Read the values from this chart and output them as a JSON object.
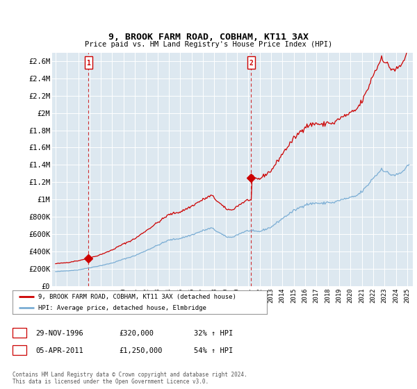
{
  "title": "9, BROOK FARM ROAD, COBHAM, KT11 3AX",
  "subtitle": "Price paid vs. HM Land Registry's House Price Index (HPI)",
  "legend_line1": "9, BROOK FARM ROAD, COBHAM, KT11 3AX (detached house)",
  "legend_line2": "HPI: Average price, detached house, Elmbridge",
  "annotation1_date": "29-NOV-1996",
  "annotation1_price": "£320,000",
  "annotation1_hpi": "32% ↑ HPI",
  "annotation2_date": "05-APR-2011",
  "annotation2_price": "£1,250,000",
  "annotation2_hpi": "54% ↑ HPI",
  "footnote": "Contains HM Land Registry data © Crown copyright and database right 2024.\nThis data is licensed under the Open Government Licence v3.0.",
  "red_line_color": "#cc0000",
  "blue_line_color": "#7aadd4",
  "annotation_box_color": "#cc0000",
  "background_color": "#ffffff",
  "plot_bg_color": "#dde8f0",
  "grid_color": "#ffffff",
  "ylim": [
    0,
    2700000
  ],
  "ytick_labels": [
    "£0",
    "£200K",
    "£400K",
    "£600K",
    "£800K",
    "£1M",
    "£1.2M",
    "£1.4M",
    "£1.6M",
    "£1.8M",
    "£2M",
    "£2.2M",
    "£2.4M",
    "£2.6M"
  ],
  "sale1_year": 1996.9,
  "sale1_price": 320000,
  "sale2_year": 2011.25,
  "sale2_price": 1250000,
  "xlim_start": 1993.7,
  "xlim_end": 2025.5
}
